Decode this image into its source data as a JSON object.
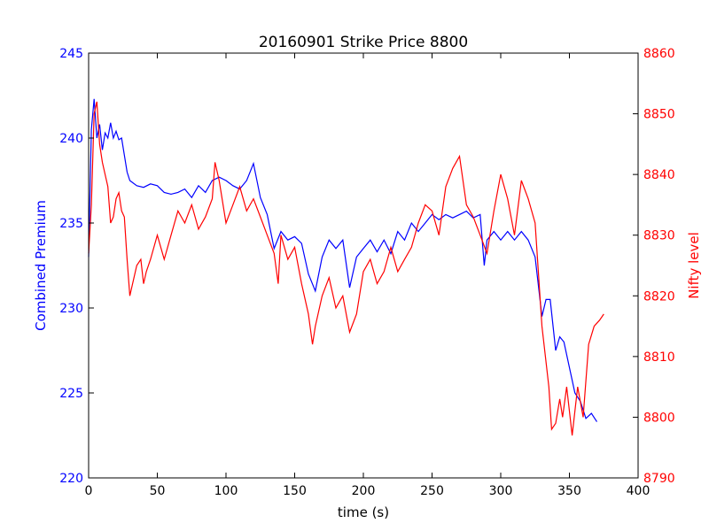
{
  "chart_data": {
    "type": "line",
    "title": "20160901 Strike Price 8800",
    "xlabel": "time (s)",
    "ylabel_left": "Combined Premium",
    "ylabel_right": "Nifty level",
    "xlim": [
      0,
      400
    ],
    "ylim_left": [
      220,
      245
    ],
    "ylim_right": [
      8790,
      8860
    ],
    "x_ticks": [
      0,
      50,
      100,
      150,
      200,
      250,
      300,
      350,
      400
    ],
    "y_ticks_left": [
      220,
      225,
      230,
      235,
      240,
      245
    ],
    "y_ticks_right": [
      8790,
      8800,
      8810,
      8820,
      8830,
      8840,
      8850,
      8860
    ],
    "grid": false,
    "colors": {
      "left": "#0000ff",
      "right": "#ff0000"
    },
    "series": [
      {
        "axis": "left",
        "color": "#0000ff",
        "x": [
          0,
          2,
          4,
          6,
          8,
          10,
          12,
          14,
          16,
          18,
          20,
          22,
          24,
          26,
          28,
          30,
          35,
          40,
          45,
          50,
          55,
          60,
          65,
          70,
          75,
          80,
          85,
          90,
          95,
          100,
          105,
          110,
          115,
          120,
          125,
          130,
          135,
          140,
          145,
          150,
          155,
          160,
          165,
          170,
          175,
          180,
          185,
          190,
          195,
          200,
          205,
          210,
          215,
          220,
          225,
          230,
          235,
          240,
          245,
          250,
          255,
          260,
          265,
          270,
          275,
          280,
          285,
          288,
          290,
          295,
          300,
          305,
          310,
          315,
          320,
          325,
          330,
          333,
          336,
          340,
          343,
          346,
          350,
          354,
          358,
          362,
          366,
          370
        ],
        "y": [
          233.0,
          240.5,
          242.3,
          240.0,
          240.8,
          239.3,
          240.3,
          240.0,
          240.9,
          240.0,
          240.4,
          239.9,
          240.0,
          239.0,
          238.0,
          237.5,
          237.2,
          237.1,
          237.3,
          237.2,
          236.8,
          236.7,
          236.8,
          237.0,
          236.5,
          237.2,
          236.8,
          237.5,
          237.7,
          237.5,
          237.2,
          237.0,
          237.5,
          238.5,
          236.5,
          235.5,
          233.5,
          234.5,
          234.0,
          234.2,
          233.8,
          232.0,
          231.0,
          233.0,
          234.0,
          233.5,
          234.0,
          231.2,
          233.0,
          233.5,
          234.0,
          233.3,
          234.0,
          233.2,
          234.5,
          234.0,
          235.0,
          234.5,
          235.0,
          235.5,
          235.2,
          235.5,
          235.3,
          235.5,
          235.7,
          235.3,
          235.5,
          232.5,
          234.0,
          234.5,
          234.0,
          234.5,
          234.0,
          234.5,
          234.0,
          233.0,
          229.5,
          230.5,
          230.5,
          227.5,
          228.3,
          228.0,
          226.5,
          225.0,
          224.5,
          223.5,
          223.8,
          223.3
        ]
      },
      {
        "axis": "right",
        "color": "#ff0000",
        "x": [
          0,
          2,
          4,
          6,
          8,
          10,
          12,
          14,
          16,
          18,
          20,
          22,
          24,
          26,
          28,
          30,
          32,
          35,
          38,
          40,
          42,
          45,
          50,
          55,
          60,
          65,
          70,
          75,
          80,
          85,
          90,
          92,
          95,
          100,
          105,
          110,
          115,
          120,
          125,
          130,
          135,
          138,
          140,
          145,
          150,
          155,
          160,
          163,
          165,
          170,
          175,
          180,
          185,
          190,
          195,
          200,
          205,
          210,
          215,
          220,
          225,
          230,
          235,
          240,
          245,
          250,
          255,
          260,
          265,
          270,
          275,
          280,
          285,
          290,
          295,
          300,
          305,
          310,
          315,
          320,
          325,
          330,
          335,
          337,
          340,
          343,
          345,
          348,
          352,
          356,
          360,
          364,
          368,
          372,
          375
        ],
        "y": [
          8827.0,
          8835.0,
          8850.0,
          8852.0,
          8845.0,
          8842.0,
          8840.0,
          8838.0,
          8832.0,
          8833.0,
          8836.0,
          8837.0,
          8834.0,
          8833.0,
          8826.0,
          8820.0,
          8822.0,
          8825.0,
          8826.0,
          8822.0,
          8824.0,
          8826.0,
          8830.0,
          8826.0,
          8830.0,
          8834.0,
          8832.0,
          8835.0,
          8831.0,
          8833.0,
          8836.0,
          8842.0,
          8839.0,
          8832.0,
          8835.0,
          8838.0,
          8834.0,
          8836.0,
          8833.0,
          8830.0,
          8827.0,
          8822.0,
          8830.0,
          8826.0,
          8828.0,
          8822.0,
          8817.0,
          8812.0,
          8815.0,
          8820.0,
          8823.0,
          8818.0,
          8820.0,
          8814.0,
          8817.0,
          8824.0,
          8826.0,
          8822.0,
          8824.0,
          8828.0,
          8824.0,
          8826.0,
          8828.0,
          8832.0,
          8835.0,
          8834.0,
          8830.0,
          8838.0,
          8841.0,
          8843.0,
          8835.0,
          8833.0,
          8830.0,
          8827.0,
          8834.0,
          8840.0,
          8836.0,
          8830.0,
          8839.0,
          8836.0,
          8832.0,
          8815.0,
          8805.0,
          8798.0,
          8799.0,
          8803.0,
          8800.0,
          8805.0,
          8797.0,
          8805.0,
          8800.0,
          8812.0,
          8815.0,
          8816.0,
          8817.0
        ]
      }
    ]
  }
}
